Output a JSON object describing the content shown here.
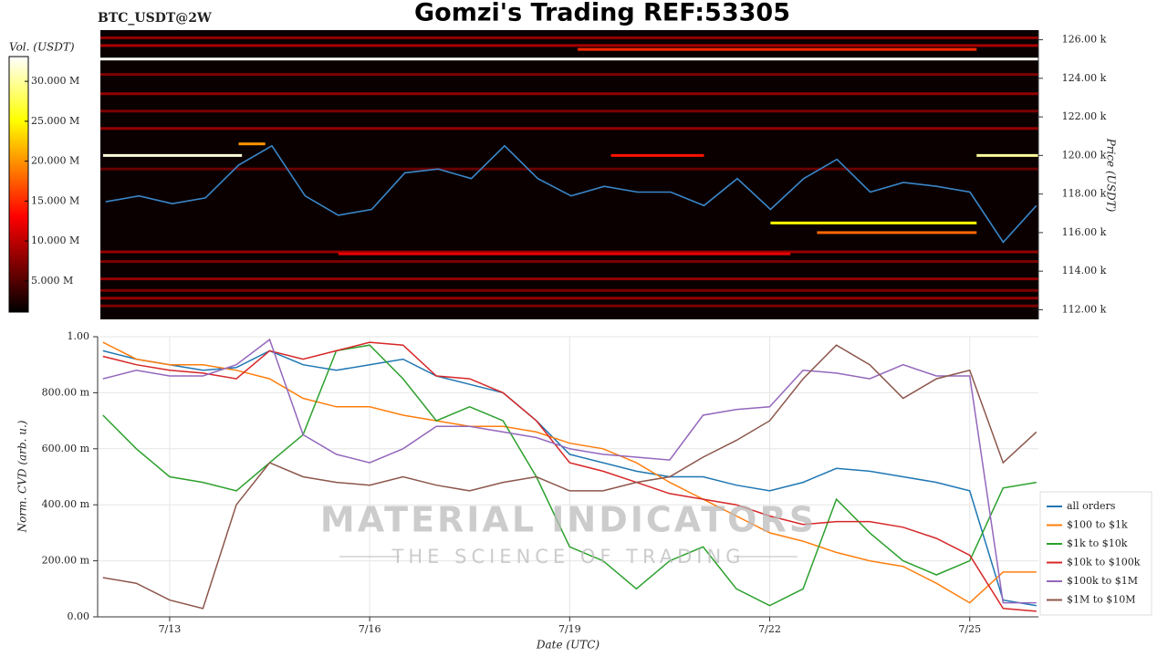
{
  "title": "Gomzi's Trading REF:53305",
  "watermark": {
    "name": "MATERIAL INDICATORS",
    "tagline": "THE SCIENCE OF TRADING"
  },
  "chart_data": [
    {
      "type": "heatmap",
      "title": "BTC_USDT@2W",
      "ylabel": "Price (USDT)",
      "colorbar_label": "Vol. (USDT)",
      "colormap": "hot",
      "xlim": [
        11.92,
        26.03
      ],
      "ylim": [
        111.5,
        126.5
      ],
      "yticks": [
        {
          "value": 112,
          "label": "112.00 k"
        },
        {
          "value": 114,
          "label": "114.00 k"
        },
        {
          "value": 116,
          "label": "116.00 k"
        },
        {
          "value": 118,
          "label": "118.00 k"
        },
        {
          "value": 120,
          "label": "120.00 k"
        },
        {
          "value": 122,
          "label": "122.00 k"
        },
        {
          "value": 124,
          "label": "124.00 k"
        },
        {
          "value": 126,
          "label": "126.00 k"
        }
      ],
      "clim": [
        1.1,
        33.1
      ],
      "cticks": [
        {
          "value": 5,
          "label": "5.000 M"
        },
        {
          "value": 10,
          "label": "10.000 M"
        },
        {
          "value": 15,
          "label": "15.000 M"
        },
        {
          "value": 20,
          "label": "20.000 M"
        },
        {
          "value": 25,
          "label": "25.000 M"
        },
        {
          "value": 30,
          "label": "30.000 M"
        }
      ],
      "levels": [
        {
          "price": 126.1,
          "start": 11.92,
          "end": 26.03,
          "volume": 8
        },
        {
          "price": 125.7,
          "start": 11.92,
          "end": 26.03,
          "volume": 9
        },
        {
          "price": 125.5,
          "start": 19.1,
          "end": 25.1,
          "volume": 15
        },
        {
          "price": 125.0,
          "start": 11.92,
          "end": 26.03,
          "volume": 33
        },
        {
          "price": 124.2,
          "start": 11.92,
          "end": 26.03,
          "volume": 7
        },
        {
          "price": 123.2,
          "start": 11.92,
          "end": 26.03,
          "volume": 8
        },
        {
          "price": 122.3,
          "start": 11.92,
          "end": 26.03,
          "volume": 7
        },
        {
          "price": 121.4,
          "start": 11.92,
          "end": 26.03,
          "volume": 8
        },
        {
          "price": 120.6,
          "start": 14.0,
          "end": 14.4,
          "volume": 20
        },
        {
          "price": 120.0,
          "start": 11.96,
          "end": 14.05,
          "volume": 32
        },
        {
          "price": 120.0,
          "start": 19.6,
          "end": 21.0,
          "volume": 14
        },
        {
          "price": 120.0,
          "start": 25.1,
          "end": 26.03,
          "volume": 30
        },
        {
          "price": 119.3,
          "start": 11.92,
          "end": 26.03,
          "volume": 6
        },
        {
          "price": 116.5,
          "start": 22.0,
          "end": 25.1,
          "volume": 25
        },
        {
          "price": 116.0,
          "start": 22.7,
          "end": 25.1,
          "volume": 18
        },
        {
          "price": 115.0,
          "start": 11.92,
          "end": 26.03,
          "volume": 8
        },
        {
          "price": 114.9,
          "start": 15.5,
          "end": 22.3,
          "volume": 12
        },
        {
          "price": 114.5,
          "start": 11.92,
          "end": 26.03,
          "volume": 7
        },
        {
          "price": 113.6,
          "start": 11.92,
          "end": 26.03,
          "volume": 8
        },
        {
          "price": 113.0,
          "start": 11.92,
          "end": 26.03,
          "volume": 7
        },
        {
          "price": 112.6,
          "start": 11.92,
          "end": 26.03,
          "volume": 8
        },
        {
          "price": 112.2,
          "start": 11.92,
          "end": 26.03,
          "volume": 7
        }
      ],
      "x": [
        12,
        12.5,
        13,
        13.5,
        14,
        14.5,
        15,
        15.5,
        16,
        16.5,
        17,
        17.5,
        18,
        18.5,
        19,
        19.5,
        20,
        20.5,
        21,
        21.5,
        22,
        22.5,
        23,
        23.5,
        24,
        24.5,
        25,
        25.5,
        26
      ],
      "series": [
        {
          "color": "#3a86c8",
          "values": [
            117.6,
            117.9,
            117.5,
            117.8,
            119.5,
            120.5,
            117.9,
            116.9,
            117.2,
            119.1,
            119.3,
            118.8,
            120.5,
            118.8,
            117.9,
            118.4,
            118.1,
            118.1,
            117.4,
            118.8,
            117.2,
            118.8,
            119.8,
            118.1,
            118.6,
            118.4,
            118.1,
            115.5,
            117.4
          ]
        }
      ]
    },
    {
      "type": "line",
      "xlabel": "Date (UTC)",
      "ylabel": "Norm. CVD (arb. u.)",
      "grid": true,
      "legend": "lower right",
      "xlim": [
        11.92,
        26.03
      ],
      "xticks": [
        {
          "value": 13,
          "label": "7/13"
        },
        {
          "value": 16,
          "label": "7/16"
        },
        {
          "value": 19,
          "label": "7/19"
        },
        {
          "value": 22,
          "label": "7/22"
        },
        {
          "value": 25,
          "label": "7/25"
        }
      ],
      "ylim": [
        0,
        1
      ],
      "yticks": [
        {
          "value": 0,
          "label": "0.00"
        },
        {
          "value": 0.2,
          "label": "200.00 m"
        },
        {
          "value": 0.4,
          "label": "400.00 m"
        },
        {
          "value": 0.6,
          "label": "600.00 m"
        },
        {
          "value": 0.8,
          "label": "800.00 m"
        },
        {
          "value": 1,
          "label": "1.00"
        }
      ],
      "x": [
        12,
        12.5,
        13,
        13.5,
        14,
        14.5,
        15,
        15.5,
        16,
        16.5,
        17,
        17.5,
        18,
        18.5,
        19,
        19.5,
        20,
        20.5,
        21,
        21.5,
        22,
        22.5,
        23,
        23.5,
        24,
        24.5,
        25,
        25.5,
        26
      ],
      "series": [
        {
          "name": "all orders",
          "color": "#1f77b4",
          "values": [
            0.95,
            0.92,
            0.9,
            0.88,
            0.89,
            0.95,
            0.9,
            0.88,
            0.9,
            0.92,
            0.86,
            0.83,
            0.8,
            0.7,
            0.58,
            0.55,
            0.52,
            0.5,
            0.5,
            0.47,
            0.45,
            0.48,
            0.53,
            0.52,
            0.5,
            0.48,
            0.45,
            0.06,
            0.04
          ]
        },
        {
          "name": "$100 to $1k",
          "color": "#ff7f0e",
          "values": [
            0.98,
            0.92,
            0.9,
            0.9,
            0.88,
            0.85,
            0.78,
            0.75,
            0.75,
            0.72,
            0.7,
            0.68,
            0.68,
            0.66,
            0.62,
            0.6,
            0.55,
            0.48,
            0.42,
            0.36,
            0.3,
            0.27,
            0.23,
            0.2,
            0.18,
            0.12,
            0.05,
            0.16,
            0.16
          ]
        },
        {
          "name": "$1k to $10k",
          "color": "#2ca02c",
          "values": [
            0.72,
            0.6,
            0.5,
            0.48,
            0.45,
            0.55,
            0.65,
            0.95,
            0.97,
            0.85,
            0.7,
            0.75,
            0.7,
            0.5,
            0.25,
            0.2,
            0.1,
            0.2,
            0.25,
            0.1,
            0.04,
            0.1,
            0.42,
            0.3,
            0.2,
            0.15,
            0.2,
            0.46,
            0.48
          ]
        },
        {
          "name": "$10k to $100k",
          "color": "#d62728",
          "values": [
            0.93,
            0.9,
            0.88,
            0.87,
            0.85,
            0.95,
            0.92,
            0.95,
            0.98,
            0.97,
            0.86,
            0.85,
            0.8,
            0.7,
            0.55,
            0.52,
            0.48,
            0.44,
            0.42,
            0.4,
            0.36,
            0.33,
            0.34,
            0.34,
            0.32,
            0.28,
            0.22,
            0.03,
            0.02
          ]
        },
        {
          "name": "$100k to $1M",
          "color": "#9467bd",
          "values": [
            0.85,
            0.88,
            0.86,
            0.86,
            0.9,
            0.99,
            0.65,
            0.58,
            0.55,
            0.6,
            0.68,
            0.68,
            0.66,
            0.64,
            0.6,
            0.58,
            0.57,
            0.56,
            0.72,
            0.74,
            0.75,
            0.88,
            0.87,
            0.85,
            0.9,
            0.86,
            0.86,
            0.05,
            0.05
          ]
        },
        {
          "name": "$1M to $10M",
          "color": "#8c564b",
          "values": [
            0.14,
            0.12,
            0.06,
            0.03,
            0.4,
            0.55,
            0.5,
            0.48,
            0.47,
            0.5,
            0.47,
            0.45,
            0.48,
            0.5,
            0.45,
            0.45,
            0.48,
            0.5,
            0.57,
            0.63,
            0.7,
            0.85,
            0.97,
            0.9,
            0.78,
            0.85,
            0.88,
            0.55,
            0.66
          ]
        }
      ]
    }
  ]
}
